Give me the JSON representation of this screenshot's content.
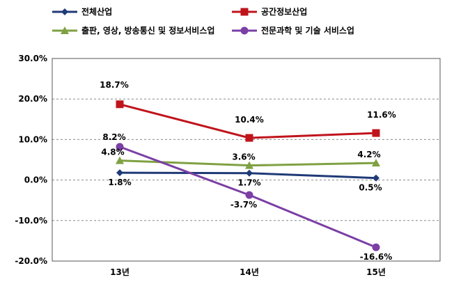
{
  "chart_data": {
    "type": "line",
    "categories": [
      "13년",
      "14년",
      "15년"
    ],
    "ylim": [
      -20,
      30
    ],
    "yticks": [
      "30.0%",
      "20.0%",
      "10.0%",
      "0.0%",
      "-10.0%",
      "-20.0%"
    ],
    "yticks_values": [
      30,
      20,
      10,
      0,
      -10,
      -20
    ],
    "grid": true,
    "legend_position": "top",
    "series": [
      {
        "name": "전체산업",
        "values": [
          1.8,
          1.7,
          0.5
        ],
        "labels": [
          "1.8%",
          "1.7%",
          "0.5%"
        ],
        "color": "#1f3a77",
        "marker": "diamond"
      },
      {
        "name": "공간정보산업",
        "values": [
          18.7,
          10.4,
          11.6
        ],
        "labels": [
          "18.7%",
          "10.4%",
          "11.6%"
        ],
        "color": "#c0141c",
        "marker": "square"
      },
      {
        "name": "출판, 영상, 방송통신 및 정보서비스업",
        "values": [
          4.8,
          3.6,
          4.2
        ],
        "labels": [
          "4.8%",
          "3.6%",
          "4.2%"
        ],
        "color": "#7fa143",
        "marker": "triangle"
      },
      {
        "name": "전문과학 및 기술 서비스업",
        "values": [
          8.2,
          -3.7,
          -16.6
        ],
        "labels": [
          "8.2%",
          "-3.7%",
          "-16.6%"
        ],
        "color": "#7b3fa5",
        "marker": "circle"
      }
    ]
  }
}
